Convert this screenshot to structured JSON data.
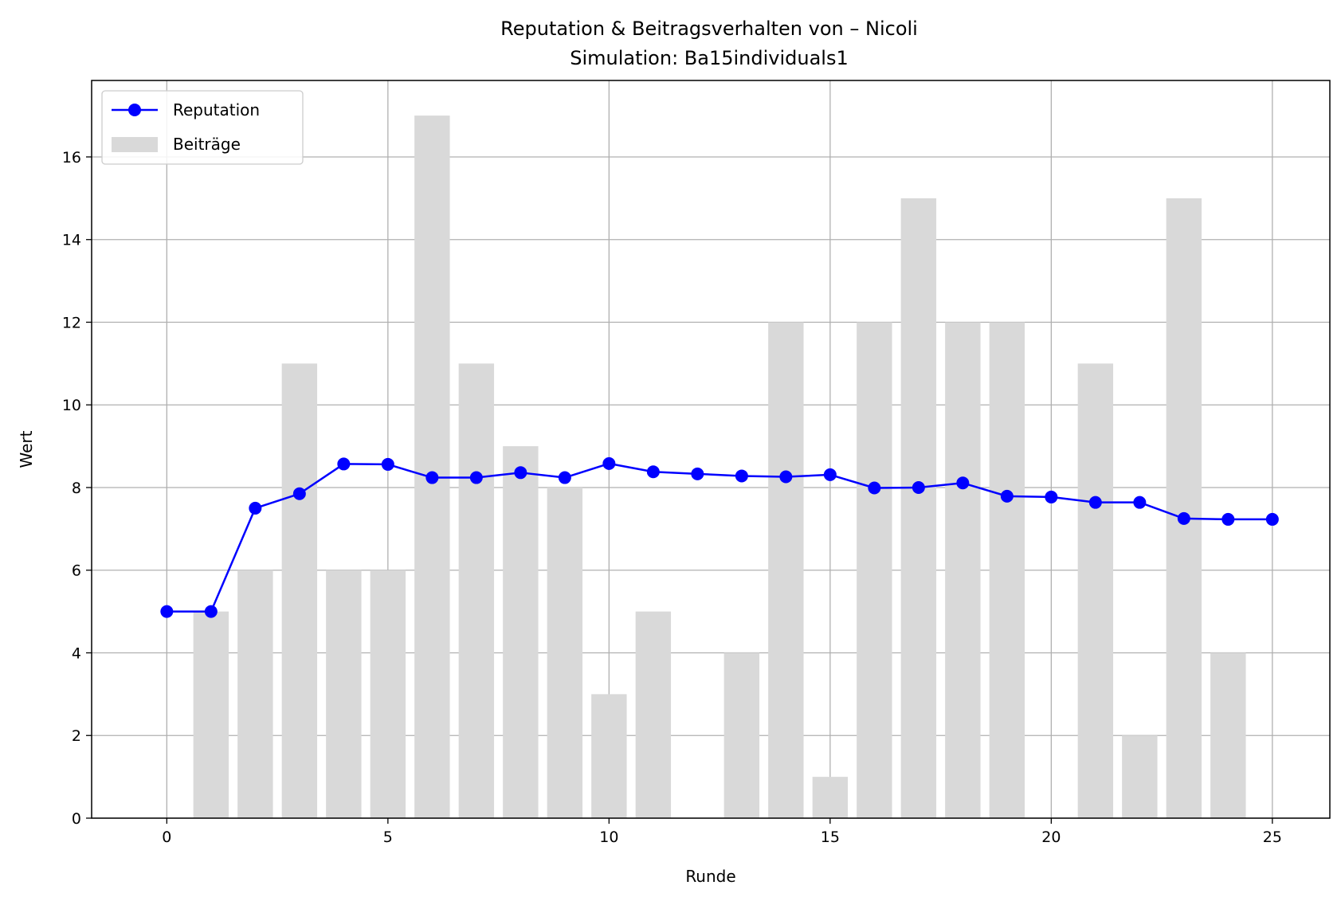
{
  "chart_data": {
    "type": "bar",
    "title": "Reputation & Beitragsverhalten von – Nicoli",
    "subtitle": "Simulation: Ba15individuals1",
    "xlabel": "Runde",
    "ylabel": "Wert",
    "xlim": [
      -1.7,
      26.3
    ],
    "ylim": [
      0,
      17.85
    ],
    "xticks": [
      0,
      5,
      10,
      15,
      20,
      25
    ],
    "yticks": [
      0,
      2,
      4,
      6,
      8,
      10,
      12,
      14,
      16
    ],
    "grid": true,
    "legend_position": "top-left",
    "series": [
      {
        "name": "Beiträge",
        "kind": "bar",
        "color": "#d9d9d9",
        "x": [
          1,
          2,
          3,
          4,
          5,
          6,
          7,
          8,
          9,
          10,
          11,
          13,
          14,
          15,
          16,
          17,
          18,
          19,
          21,
          22,
          23,
          24
        ],
        "values": [
          5,
          6,
          11,
          6,
          6,
          17,
          11,
          9,
          8,
          3,
          5,
          4,
          12,
          1,
          12,
          15,
          12,
          12,
          11,
          2,
          15,
          4
        ]
      },
      {
        "name": "Reputation",
        "kind": "line",
        "marker": "circle",
        "color": "#0000ff",
        "x": [
          0,
          1,
          2,
          3,
          4,
          5,
          6,
          7,
          8,
          9,
          10,
          11,
          12,
          13,
          14,
          15,
          16,
          17,
          18,
          19,
          20,
          21,
          22,
          23,
          24,
          25
        ],
        "values": [
          5.0,
          5.0,
          7.5,
          7.85,
          8.57,
          8.56,
          8.24,
          8.24,
          8.36,
          8.24,
          8.58,
          8.38,
          8.33,
          8.28,
          8.26,
          8.31,
          7.99,
          8.0,
          8.11,
          7.79,
          7.77,
          7.64,
          7.64,
          7.25,
          7.23,
          7.23
        ]
      }
    ]
  }
}
